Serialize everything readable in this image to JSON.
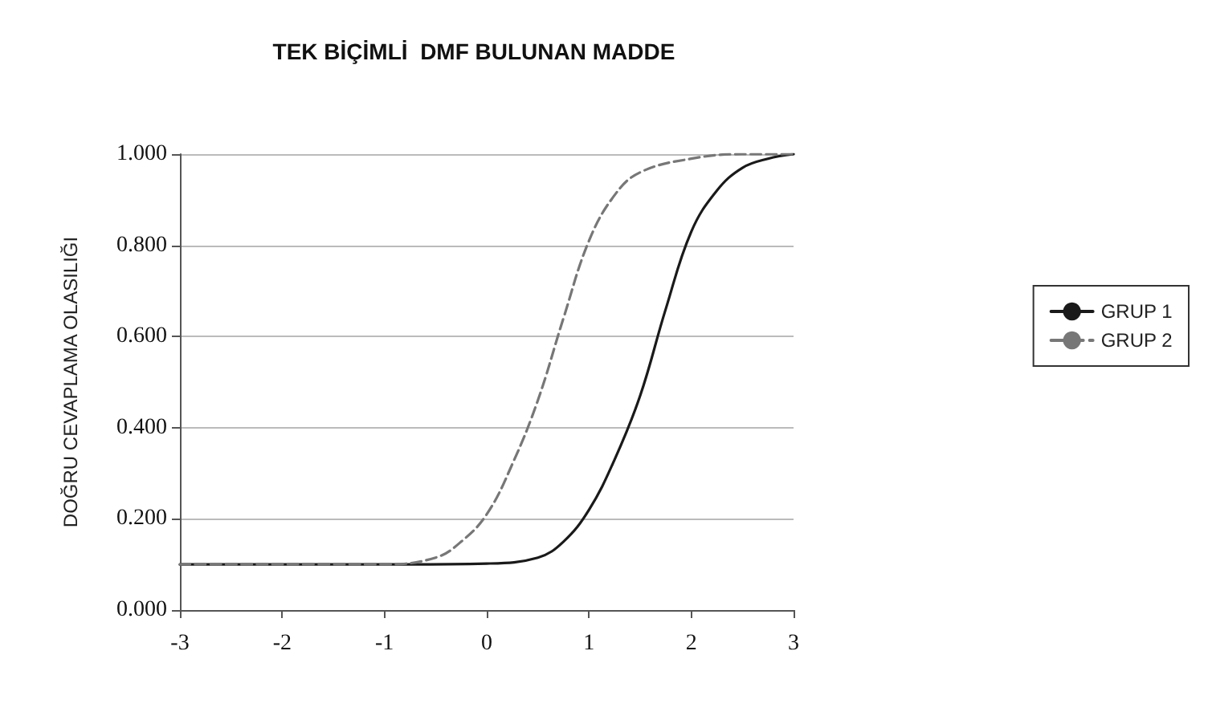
{
  "chart_data": {
    "type": "line",
    "title": "TEK BİÇİMLİ  DMF BULUNAN MADDE",
    "ylabel": "DOĞRU CEVAPLAMA OLASILIĞI",
    "xlim": [
      -3,
      3
    ],
    "xticks": [
      -3,
      -2,
      -1,
      0,
      1,
      2,
      3
    ],
    "ylim": [
      0,
      1
    ],
    "yticks": [
      {
        "value": 0,
        "label": "0.000"
      },
      {
        "value": 0.2,
        "label": "0.200"
      },
      {
        "value": 0.4,
        "label": "0.400"
      },
      {
        "value": 0.6,
        "label": "0.600"
      },
      {
        "value": 0.8,
        "label": "0.800"
      },
      {
        "value": 1,
        "label": "1.000"
      }
    ],
    "grid": "y",
    "legend": "right",
    "marker": "none",
    "series": [
      {
        "name": "GRUP 1",
        "color": "#1a1a1a",
        "line_style": "solid",
        "x": [
          -3,
          -1,
          0,
          0.5,
          0.75,
          1,
          1.25,
          1.5,
          1.75,
          2,
          2.25,
          2.5,
          2.75,
          3
        ],
        "values": [
          0.1,
          0.1,
          0.102,
          0.115,
          0.15,
          0.22,
          0.33,
          0.47,
          0.66,
          0.83,
          0.92,
          0.97,
          0.99,
          1.0
        ]
      },
      {
        "name": "GRUP 2",
        "color": "#777777",
        "line_style": "dashed",
        "x": [
          -3,
          -1,
          -0.5,
          -0.25,
          0,
          0.25,
          0.5,
          0.75,
          1,
          1.25,
          1.5,
          2,
          2.5,
          3
        ],
        "values": [
          0.1,
          0.1,
          0.115,
          0.15,
          0.21,
          0.32,
          0.46,
          0.64,
          0.81,
          0.91,
          0.96,
          0.99,
          1.0,
          1.0
        ]
      }
    ]
  }
}
